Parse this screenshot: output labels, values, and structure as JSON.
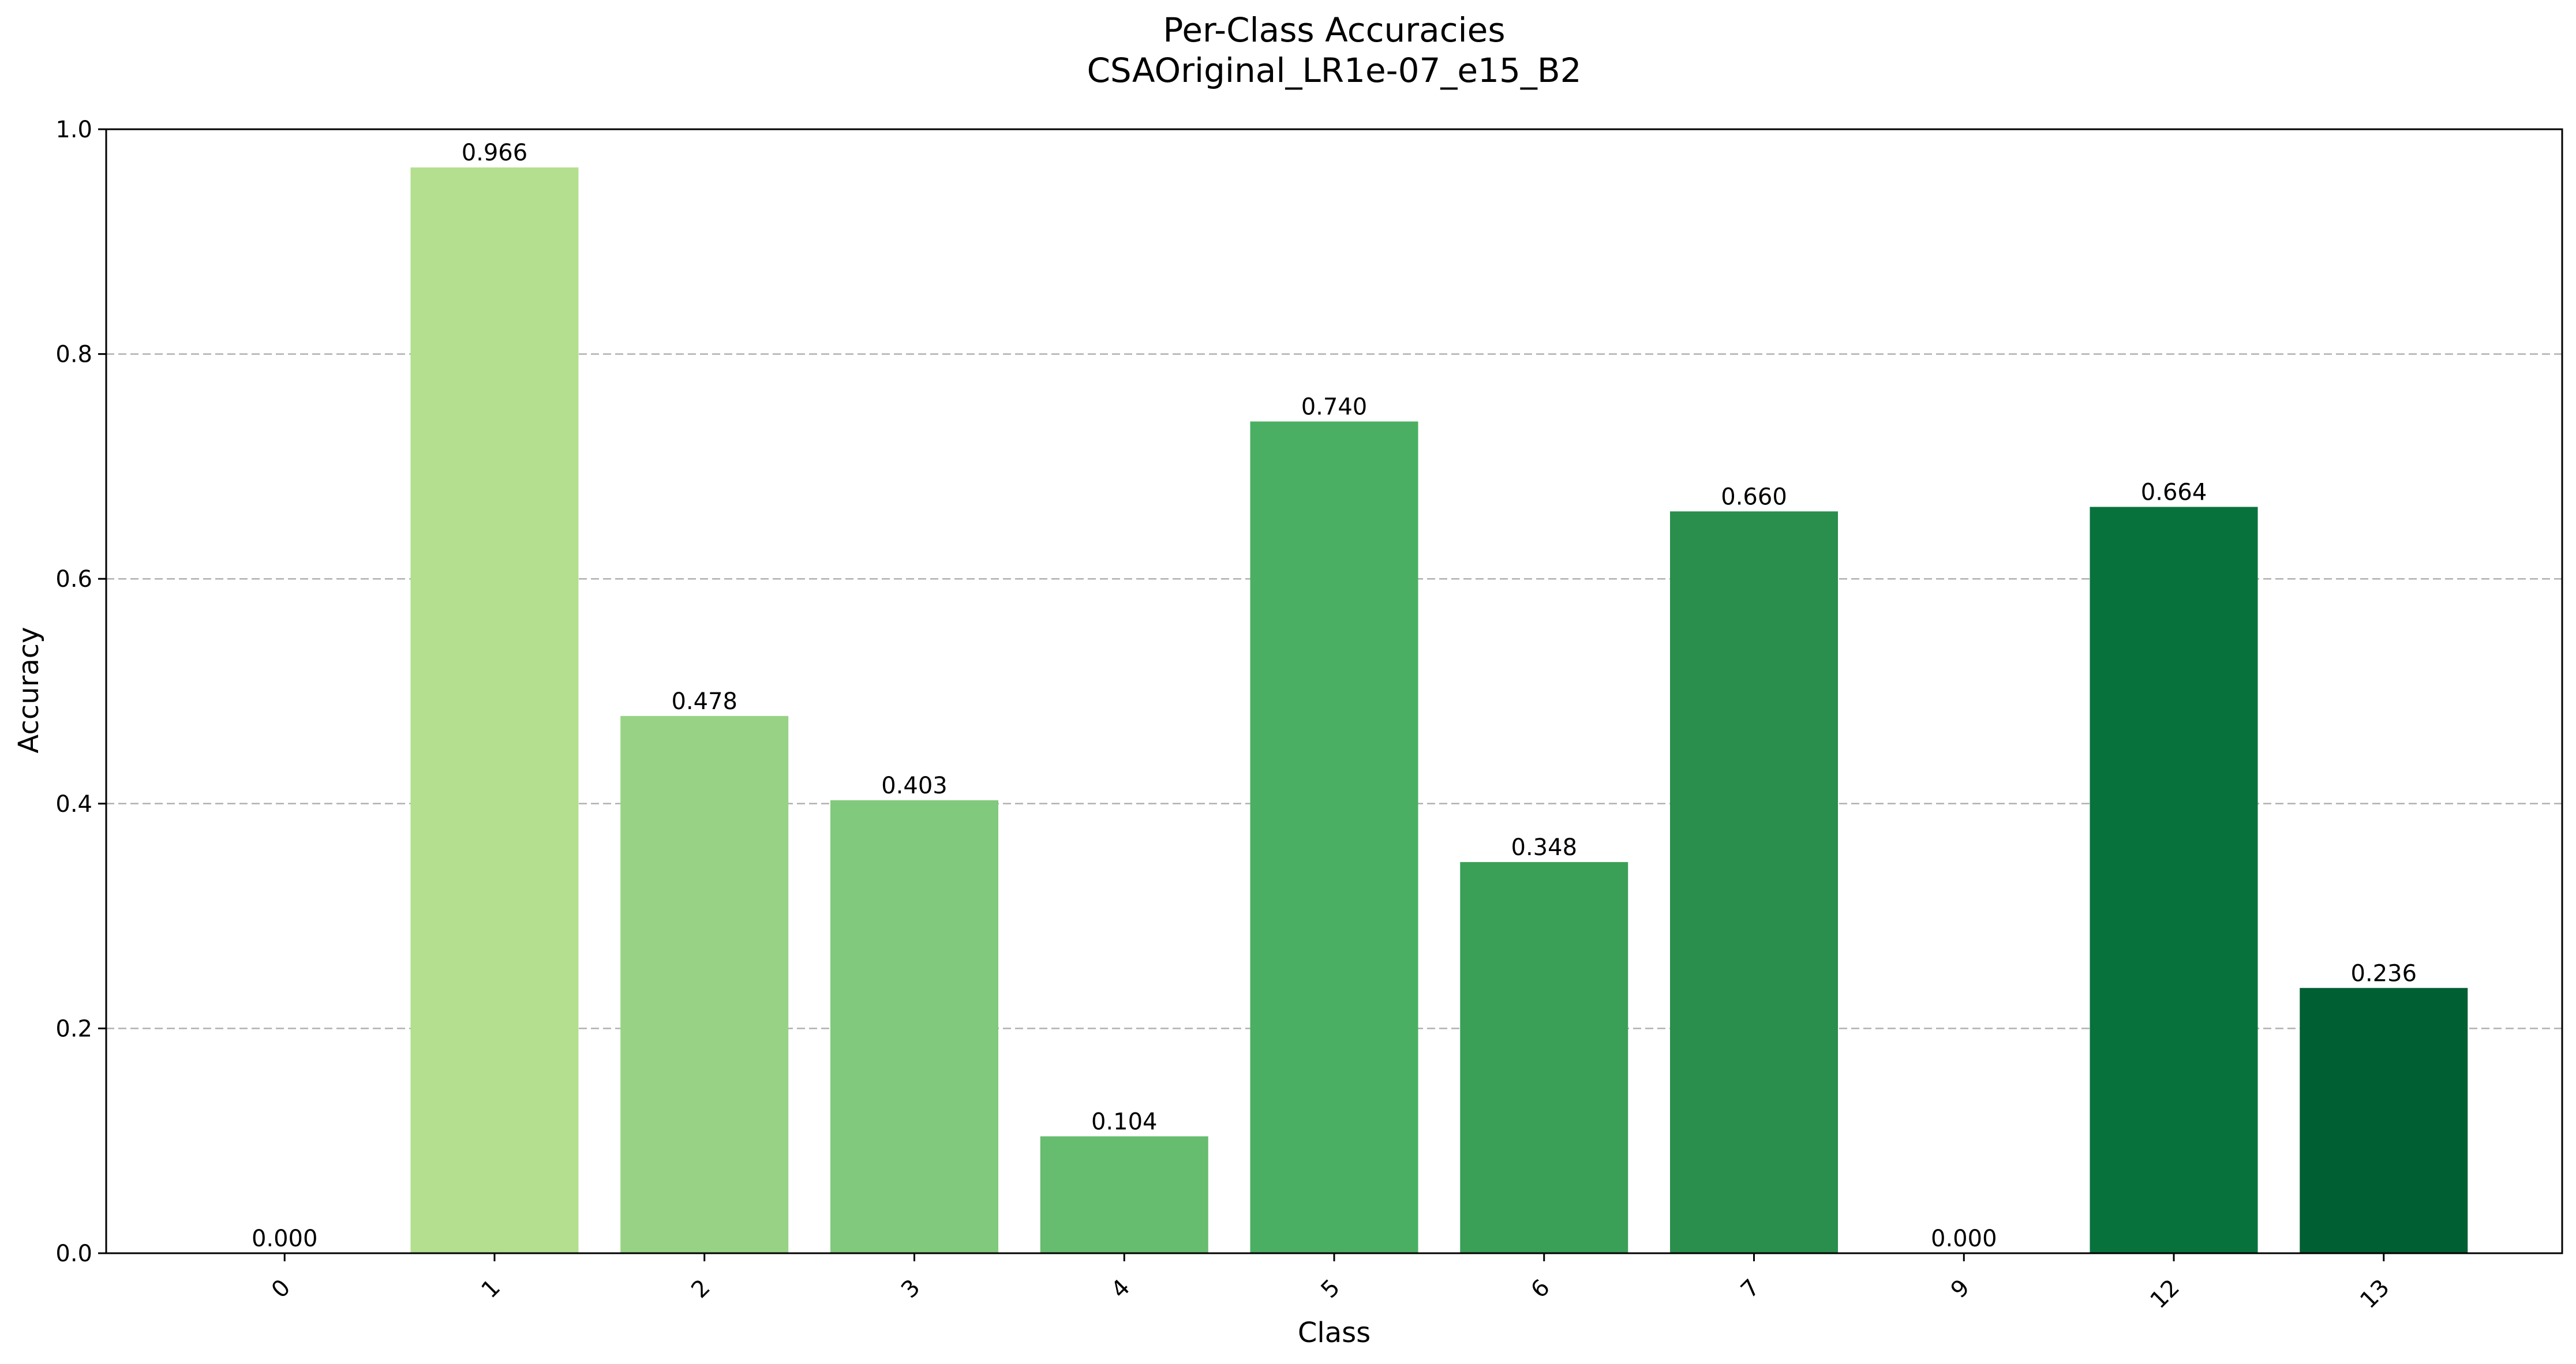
{
  "chart_data": {
    "type": "bar",
    "title": "Per-Class Accuracies",
    "subtitle": "CSAOriginal_LR1e-07_e15_B2",
    "xlabel": "Class",
    "ylabel": "Accuracy",
    "ylim": [
      0,
      1.0
    ],
    "yticks": [
      0.0,
      0.2,
      0.4,
      0.6,
      0.8,
      1.0
    ],
    "ytick_labels": [
      "0.0",
      "0.2",
      "0.4",
      "0.6",
      "0.8",
      "1.0"
    ],
    "grid": "horizontal dashed",
    "categories": [
      "0",
      "1",
      "2",
      "3",
      "4",
      "5",
      "6",
      "7",
      "9",
      "12",
      "13"
    ],
    "values": [
      0.0,
      0.966,
      0.478,
      0.403,
      0.104,
      0.74,
      0.348,
      0.66,
      0.0,
      0.664,
      0.236
    ],
    "value_labels": [
      "0.000",
      "0.966",
      "0.478",
      "0.403",
      "0.104",
      "0.740",
      "0.348",
      "0.660",
      "0.000",
      "0.664",
      "0.236"
    ],
    "colors": [
      "#f7fcb9",
      "#b3df8e",
      "#98d385",
      "#81c97c",
      "#66bc6f",
      "#4aaf62",
      "#3a9f57",
      "#2a8e4c",
      "#187f42",
      "#08723d",
      "#005f33"
    ]
  }
}
